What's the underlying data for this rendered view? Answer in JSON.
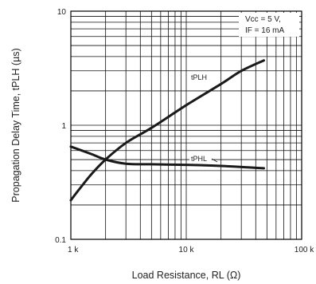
{
  "chart_data": {
    "type": "line",
    "xlabel": "Load Resistance, RL  (Ω)",
    "ylabel": "Propagation Delay Time, tPLH (µs)",
    "x_scale": "log",
    "y_scale": "log",
    "xlim": [
      1000,
      100000
    ],
    "ylim": [
      0.1,
      10
    ],
    "grid": true,
    "x_ticks": [
      {
        "value": 1000,
        "label": "1 k"
      },
      {
        "value": 10000,
        "label": "10 k"
      },
      {
        "value": 100000,
        "label": "100 k"
      }
    ],
    "y_ticks": [
      {
        "value": 0.1,
        "label": "0.1"
      },
      {
        "value": 1,
        "label": "1"
      },
      {
        "value": 10,
        "label": "10"
      }
    ],
    "conditions": [
      "Vcc = 5 V,",
      "IF = 16 mA"
    ],
    "series": [
      {
        "name": "tPLH",
        "points": [
          [
            1000,
            0.22
          ],
          [
            1200,
            0.28
          ],
          [
            1500,
            0.37
          ],
          [
            2000,
            0.5
          ],
          [
            3000,
            0.7
          ],
          [
            5000,
            0.95
          ],
          [
            10000,
            1.5
          ],
          [
            20000,
            2.3
          ],
          [
            30000,
            3.0
          ],
          [
            47000,
            3.7
          ]
        ]
      },
      {
        "name": "tPHL",
        "points": [
          [
            1000,
            0.65
          ],
          [
            1500,
            0.56
          ],
          [
            2000,
            0.5
          ],
          [
            3000,
            0.46
          ],
          [
            5000,
            0.455
          ],
          [
            10000,
            0.45
          ],
          [
            20000,
            0.44
          ],
          [
            47000,
            0.42
          ]
        ]
      }
    ]
  }
}
